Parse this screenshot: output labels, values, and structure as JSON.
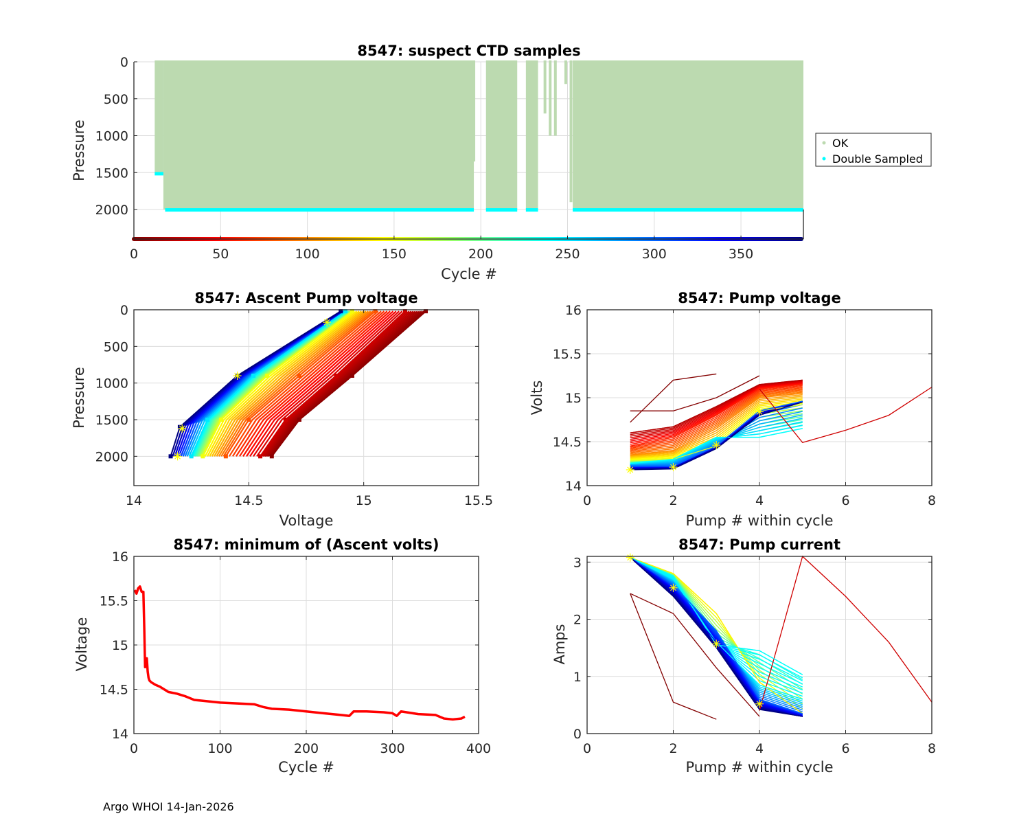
{
  "footer": "Argo WHOI 14-Jan-2026",
  "chart_data": [
    {
      "id": "suspect-ctd",
      "type": "scatter",
      "title": "8547: suspect CTD samples",
      "xlabel": "Cycle #",
      "ylabel": "Pressure",
      "xlim": [
        0,
        386
      ],
      "ylim": [
        0,
        2400
      ],
      "y_reversed": true,
      "xticks": [
        0,
        50,
        100,
        150,
        200,
        250,
        300,
        350
      ],
      "yticks": [
        0,
        500,
        1000,
        1500,
        2000
      ],
      "grid": true,
      "colorbar": "jet colormap by cycle along bottom axis",
      "legend": {
        "position": "right",
        "entries": [
          {
            "label": "OK",
            "color": "#bcdab0"
          },
          {
            "label": "Double Sampled",
            "color": "#00ffff"
          }
        ]
      },
      "ok_blocks": [
        {
          "cycles": [
            12,
            17
          ],
          "pmin": 0,
          "pmax": 1500
        },
        {
          "cycles": [
            17,
            196
          ],
          "pmin": 0,
          "pmax": 2000
        },
        {
          "cycles": [
            203,
            221
          ],
          "pmin": 0,
          "pmax": 2000
        },
        {
          "cycles": [
            226,
            233
          ],
          "pmin": 0,
          "pmax": 2000
        },
        {
          "cycles": [
            253,
            386
          ],
          "pmin": 0,
          "pmax": 2000
        }
      ],
      "ok_partial": [
        {
          "cycle": 196,
          "pmin": 0,
          "pmax": 1350
        },
        {
          "cycle": 229,
          "pmin": 0,
          "pmax": 1900
        },
        {
          "cycle": 237,
          "pmin": 0,
          "pmax": 700
        },
        {
          "cycle": 240,
          "pmin": 0,
          "pmax": 1000
        },
        {
          "cycle": 243,
          "pmin": 0,
          "pmax": 1000
        },
        {
          "cycle": 249,
          "pmin": 0,
          "pmax": 300
        },
        {
          "cycle": 252,
          "pmin": 0,
          "pmax": 1900
        }
      ],
      "double_sampled": [
        {
          "cycles": [
            12,
            17
          ],
          "pressure": 1520
        },
        {
          "cycles": [
            18,
            196
          ],
          "pressure": 2010
        },
        {
          "cycles": [
            203,
            221
          ],
          "pressure": 2010
        },
        {
          "cycles": [
            226,
            233
          ],
          "pressure": 2010
        },
        {
          "cycles": [
            253,
            386
          ],
          "pressure": 2010
        }
      ]
    },
    {
      "id": "ascent-pump-voltage",
      "type": "line",
      "title": "8547: Ascent Pump voltage",
      "xlabel": "Voltage",
      "ylabel": "Pressure",
      "xlim": [
        14,
        15.5
      ],
      "ylim": [
        0,
        2400
      ],
      "y_reversed": true,
      "xticks": [
        14,
        14.5,
        15,
        15.5
      ],
      "yticks": [
        0,
        500,
        1000,
        1500,
        2000
      ],
      "grid": true,
      "series_note": "one line per cycle, colored by cycle (jet colormap); early cycles (red) at higher voltage",
      "representative_profiles": [
        {
          "cycle": 5,
          "points": [
            [
              14.6,
              2000
            ],
            [
              14.72,
              1500
            ],
            [
              14.95,
              900
            ],
            [
              15.27,
              20
            ]
          ]
        },
        {
          "cycle": 30,
          "points": [
            [
              14.55,
              2000
            ],
            [
              14.66,
              1500
            ],
            [
              14.88,
              900
            ],
            [
              15.18,
              20
            ]
          ]
        },
        {
          "cycle": 80,
          "points": [
            [
              14.4,
              2000
            ],
            [
              14.5,
              1500
            ],
            [
              14.72,
              900
            ],
            [
              15.05,
              20
            ]
          ]
        },
        {
          "cycle": 150,
          "points": [
            [
              14.3,
              2000
            ],
            [
              14.38,
              1500
            ],
            [
              14.58,
              900
            ],
            [
              14.95,
              20
            ]
          ]
        },
        {
          "cycle": 250,
          "points": [
            [
              14.25,
              2000
            ],
            [
              14.32,
              1500
            ],
            [
              14.52,
              900
            ],
            [
              14.92,
              20
            ]
          ]
        },
        {
          "cycle": 386,
          "points": [
            [
              14.16,
              2000
            ],
            [
              14.2,
              1600
            ],
            [
              14.45,
              900
            ],
            [
              14.9,
              20
            ]
          ]
        }
      ],
      "highlight_points": [
        [
          14.19,
          2000
        ],
        [
          14.21,
          1620
        ],
        [
          14.45,
          900
        ],
        [
          14.84,
          170
        ]
      ]
    },
    {
      "id": "pump-voltage",
      "type": "line",
      "title": "8547: Pump voltage",
      "xlabel": "Pump # within cycle",
      "ylabel": "Volts",
      "xlim": [
        0,
        8
      ],
      "ylim": [
        14,
        16
      ],
      "xticks": [
        0,
        2,
        4,
        6,
        8
      ],
      "yticks": [
        14,
        14.5,
        15,
        15.5,
        16
      ],
      "grid": true,
      "series_note": "one line per cycle, colored by cycle (jet colormap)",
      "representative_series": [
        {
          "cycle": 1,
          "points": [
            [
              1,
              14.72
            ],
            [
              2,
              15.2
            ],
            [
              3,
              15.27
            ]
          ]
        },
        {
          "cycle": 2,
          "points": [
            [
              1,
              14.85
            ],
            [
              2,
              14.85
            ],
            [
              3,
              15.0
            ],
            [
              4,
              15.25
            ]
          ]
        },
        {
          "cycle": 20,
          "points": [
            [
              1,
              14.6
            ],
            [
              2,
              14.67
            ],
            [
              3,
              14.9
            ],
            [
              4,
              15.15
            ],
            [
              5,
              15.2
            ]
          ]
        },
        {
          "cycle": 60,
          "points": [
            [
              1,
              14.45
            ],
            [
              2,
              14.55
            ],
            [
              3,
              14.8
            ],
            [
              4,
              15.1
            ],
            [
              5,
              15.15
            ]
          ]
        },
        {
          "cycle": 100,
          "points": [
            [
              1,
              14.35
            ],
            [
              2,
              14.4
            ],
            [
              3,
              14.65
            ],
            [
              4,
              15.0
            ],
            [
              5,
              15.05
            ]
          ]
        },
        {
          "cycle": 160,
          "points": [
            [
              1,
              14.28
            ],
            [
              2,
              14.3
            ],
            [
              3,
              14.45
            ],
            [
              4,
              14.85
            ],
            [
              5,
              14.92
            ]
          ]
        },
        {
          "cycle": 240,
          "points": [
            [
              1,
              14.25
            ],
            [
              2,
              14.3
            ],
            [
              3,
              14.55
            ],
            [
              4,
              14.55
            ],
            [
              5,
              14.65
            ]
          ]
        },
        {
          "cycle": 300,
          "points": [
            [
              1,
              14.22
            ],
            [
              2,
              14.22
            ],
            [
              3,
              14.45
            ],
            [
              4,
              14.85
            ],
            [
              5,
              14.96
            ]
          ]
        },
        {
          "cycle": 386,
          "points": [
            [
              1,
              14.18
            ],
            [
              2,
              14.19
            ],
            [
              3,
              14.42
            ],
            [
              4,
              14.8
            ],
            [
              5,
              14.95
            ]
          ]
        },
        {
          "cycle": 30,
          "points": [
            [
              4,
              15.1
            ],
            [
              5,
              14.49
            ],
            [
              6,
              14.63
            ],
            [
              7,
              14.8
            ],
            [
              8,
              15.12
            ]
          ]
        }
      ],
      "highlight_points": [
        [
          1,
          14.18
        ],
        [
          2,
          14.21
        ],
        [
          3,
          14.46
        ],
        [
          4,
          14.84
        ]
      ]
    },
    {
      "id": "min-ascent-volts",
      "type": "line",
      "title": "8547: minimum of (Ascent volts)",
      "xlabel": "Cycle #",
      "ylabel": "Voltage",
      "xlim": [
        0,
        400
      ],
      "ylim": [
        14,
        16
      ],
      "xticks": [
        0,
        100,
        200,
        300,
        400
      ],
      "yticks": [
        14,
        14.5,
        15,
        15.5,
        16
      ],
      "grid": true,
      "series": [
        {
          "name": "min ascent volts",
          "color": "#ff0000",
          "x": [
            1,
            3,
            5,
            7,
            9,
            11,
            12,
            13,
            14,
            15,
            16,
            17,
            18,
            20,
            25,
            30,
            40,
            50,
            60,
            70,
            80,
            100,
            120,
            140,
            150,
            160,
            180,
            200,
            220,
            240,
            250,
            255,
            270,
            290,
            300,
            305,
            310,
            330,
            350,
            360,
            370,
            380,
            384
          ],
          "y": [
            15.62,
            15.58,
            15.64,
            15.66,
            15.6,
            15.6,
            15.2,
            14.75,
            14.8,
            14.85,
            14.7,
            14.63,
            14.6,
            14.58,
            14.55,
            14.53,
            14.47,
            14.45,
            14.42,
            14.38,
            14.37,
            14.35,
            14.34,
            14.33,
            14.3,
            14.28,
            14.27,
            14.25,
            14.23,
            14.21,
            14.2,
            14.25,
            14.25,
            14.24,
            14.23,
            14.2,
            14.25,
            14.22,
            14.21,
            14.17,
            14.16,
            14.17,
            14.19
          ]
        }
      ]
    },
    {
      "id": "pump-current",
      "type": "line",
      "title": "8547: Pump current",
      "xlabel": "Pump # within cycle",
      "ylabel": "Amps",
      "xlim": [
        0,
        8
      ],
      "ylim": [
        0,
        3.1
      ],
      "xticks": [
        0,
        2,
        4,
        6,
        8
      ],
      "yticks": [
        0,
        1,
        2,
        3
      ],
      "grid": true,
      "series_note": "one line per cycle, colored by cycle (jet colormap)",
      "representative_series": [
        {
          "cycle": 1,
          "points": [
            [
              1,
              2.45
            ],
            [
              2,
              0.55
            ],
            [
              3,
              0.25
            ]
          ]
        },
        {
          "cycle": 2,
          "points": [
            [
              1,
              2.45
            ],
            [
              2,
              2.1
            ],
            [
              3,
              1.15
            ],
            [
              4,
              0.3
            ]
          ]
        },
        {
          "cycle": 30,
          "points": [
            [
              4,
              0.4
            ],
            [
              5,
              3.1
            ],
            [
              6,
              2.4
            ],
            [
              7,
              1.6
            ],
            [
              8,
              0.55
            ]
          ]
        },
        {
          "cycle": 140,
          "points": [
            [
              1,
              3.08
            ],
            [
              2,
              2.8
            ],
            [
              3,
              2.1
            ],
            [
              4,
              0.9
            ],
            [
              5,
              0.35
            ]
          ]
        },
        {
          "cycle": 240,
          "points": [
            [
              1,
              3.08
            ],
            [
              2,
              2.75
            ],
            [
              3,
              1.55
            ],
            [
              4,
              1.45
            ],
            [
              5,
              1.03
            ]
          ]
        },
        {
          "cycle": 245,
          "points": [
            [
              1,
              3.08
            ],
            [
              2,
              2.7
            ],
            [
              3,
              1.6
            ],
            [
              4,
              0.85
            ],
            [
              5,
              0.6
            ]
          ]
        },
        {
          "cycle": 300,
          "points": [
            [
              1,
              3.08
            ],
            [
              2,
              2.6
            ],
            [
              3,
              1.8
            ],
            [
              4,
              0.6
            ],
            [
              5,
              0.35
            ]
          ]
        },
        {
          "cycle": 350,
          "points": [
            [
              1,
              3.08
            ],
            [
              2,
              2.5
            ],
            [
              3,
              1.6
            ],
            [
              4,
              0.5
            ],
            [
              5,
              0.3
            ]
          ]
        },
        {
          "cycle": 386,
          "points": [
            [
              1,
              3.08
            ],
            [
              2,
              2.4
            ],
            [
              3,
              1.5
            ],
            [
              4,
              0.42
            ],
            [
              5,
              0.3
            ]
          ]
        }
      ],
      "highlight_points": [
        [
          1,
          3.08
        ],
        [
          2,
          2.55
        ],
        [
          3,
          1.57
        ],
        [
          4,
          0.52
        ]
      ]
    }
  ]
}
